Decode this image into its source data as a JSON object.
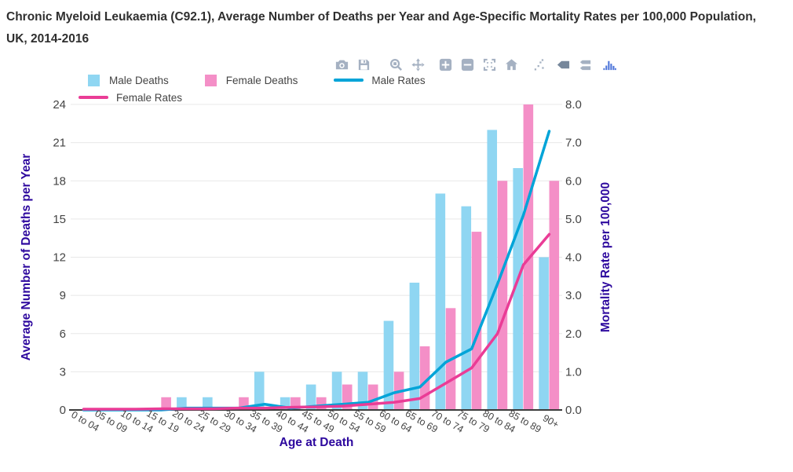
{
  "title": {
    "line1": "Chronic Myeloid Leukaemia (C92.1), Average Number of Deaths per Year and Age-Specific Mortality Rates per 100,000 Population,",
    "line2": "UK, 2014-2016"
  },
  "toolbar": {
    "icons": [
      "camera",
      "save",
      "zoom",
      "pan",
      "zoom-in",
      "zoom-out",
      "autoscale",
      "reset-axes",
      "spike-lines",
      "hover-closest",
      "hover-compare",
      "plotly-logo"
    ]
  },
  "legend": {
    "items": [
      {
        "label": "Male Deaths",
        "swatch": "square",
        "color": "#8FD6F2"
      },
      {
        "label": "Female Deaths",
        "swatch": "square",
        "color": "#F48FC7"
      },
      {
        "label": "Male Rates",
        "swatch": "line",
        "color": "#00A4D8"
      },
      {
        "label": "Female Rates",
        "swatch": "line",
        "color": "#EA3C96"
      }
    ]
  },
  "chart_data": {
    "type": "bar+line",
    "categories": [
      "0 to 04",
      "05 to 09",
      "10 to 14",
      "15 to 19",
      "20 to 24",
      "25 to 29",
      "30 to 34",
      "35 to 39",
      "40 to 44",
      "45 to 49",
      "50 to 54",
      "55 to 59",
      "60 to 64",
      "65 to 69",
      "70 to 74",
      "75 to 79",
      "80 to 84",
      "85 to 89",
      "90+"
    ],
    "series": [
      {
        "name": "Male Deaths",
        "type": "bar",
        "yaxis": "left",
        "color": "#8FD6F2",
        "values": [
          0,
          0,
          0,
          0,
          1,
          1,
          0,
          3,
          1,
          2,
          3,
          3,
          7,
          10,
          17,
          16,
          22,
          19,
          12
        ]
      },
      {
        "name": "Female Deaths",
        "type": "bar",
        "yaxis": "left",
        "color": "#F48FC7",
        "values": [
          0,
          0,
          0,
          1,
          0,
          0,
          1,
          0,
          1,
          1,
          2,
          2,
          3,
          5,
          8,
          14,
          18,
          24,
          18
        ]
      },
      {
        "name": "Male Rates",
        "type": "line",
        "yaxis": "right",
        "color": "#00A4D8",
        "values": [
          0,
          0,
          0,
          0,
          0.05,
          0.05,
          0.05,
          0.15,
          0.05,
          0.1,
          0.15,
          0.2,
          0.45,
          0.6,
          1.25,
          1.6,
          3.3,
          5.1,
          7.3
        ]
      },
      {
        "name": "Female Rates",
        "type": "line",
        "yaxis": "right",
        "color": "#EA3C96",
        "values": [
          0.02,
          0.02,
          0.02,
          0.03,
          0.03,
          0.03,
          0.05,
          0.05,
          0.07,
          0.08,
          0.1,
          0.15,
          0.2,
          0.3,
          0.7,
          1.1,
          2.0,
          3.8,
          4.6
        ]
      }
    ],
    "x_axis": {
      "title": "Age at Death",
      "tick_angle": 30
    },
    "left_axis": {
      "title": "Average Number of Deaths per Year",
      "ticks": [
        0,
        3,
        6,
        9,
        12,
        15,
        18,
        21,
        24
      ],
      "range": [
        0,
        24
      ]
    },
    "right_axis": {
      "title": "Mortality Rate per 100,000",
      "ticks": [
        "0.0",
        "1.0",
        "2.0",
        "3.0",
        "4.0",
        "5.0",
        "6.0",
        "7.0",
        "8.0"
      ],
      "range": [
        0,
        8
      ]
    },
    "grid": true,
    "legend_position": "top"
  },
  "colors": {
    "title_text": "#2F2F2F",
    "axis_title": "#2D089E",
    "tick_label": "#444444",
    "grid_line": "#E8E8E8",
    "axis_line": "#3C3C3C",
    "modebar": "#A5B1C2",
    "modebar_active": "#76879B",
    "logo_blue": "#4C74D9"
  }
}
